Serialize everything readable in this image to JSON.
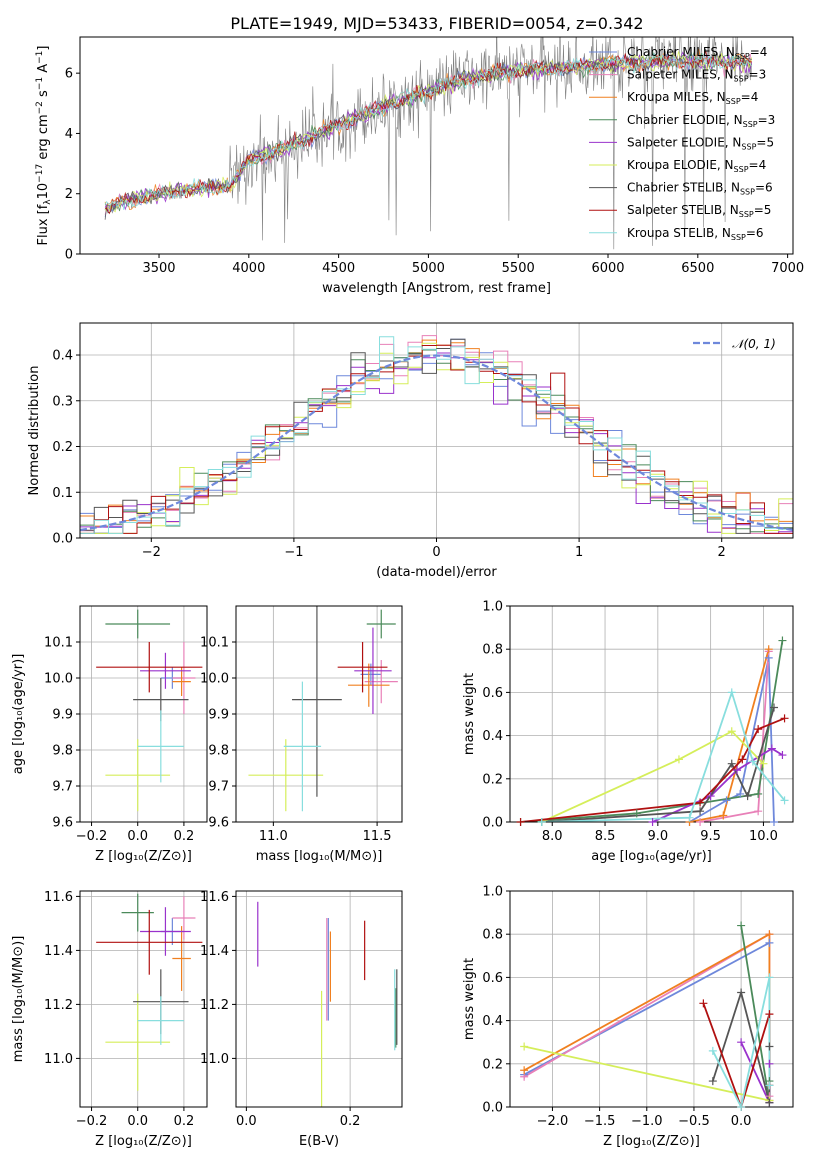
{
  "chart_data": [
    {
      "type": "line",
      "title": "PLATE=1949, MJD=53433, FIBERID=0054, z=0.342",
      "xlabel": "wavelength [Angstrom, rest frame]",
      "ylabel": "Flux [f$_\\lambda$10$^{-17}$ erg cm$^{-2}$ s$^{-1}$ A$^{-1}$]",
      "ylabel_parts": [
        "Flux [f",
        "λ",
        "10",
        "−17",
        " erg cm",
        "−2",
        " s",
        "−1",
        " A",
        "−1",
        "]"
      ],
      "xlim": [
        3060,
        7030
      ],
      "ylim": [
        0,
        7.2
      ],
      "xticks": [
        "3500",
        "4000",
        "4500",
        "5000",
        "5500",
        "6000",
        "6500",
        "7000"
      ],
      "yticks": [
        "0",
        "2",
        "4",
        "6"
      ],
      "grid": false,
      "legend_position": "top-right",
      "continuum_knots": {
        "x": [
          3200,
          3300,
          3500,
          3700,
          3900,
          4000,
          4200,
          4500,
          4800,
          5000,
          5200,
          5500,
          5800,
          6000,
          6300,
          6600,
          6800
        ],
        "y": [
          1.5,
          1.75,
          2.0,
          2.15,
          2.3,
          3.1,
          3.5,
          4.3,
          5.0,
          5.4,
          5.8,
          6.1,
          6.2,
          6.3,
          6.4,
          6.4,
          6.3
        ]
      },
      "series": [
        {
          "name": "Chabrier MILES, N",
          "sub": "SSP",
          "suffix": "=4",
          "color": "#6e88db"
        },
        {
          "name": "Salpeter MILES, N",
          "sub": "SSP",
          "suffix": "=3",
          "color": "#e880b8"
        },
        {
          "name": "Kroupa MILES, N",
          "sub": "SSP",
          "suffix": "=4",
          "color": "#f08020"
        },
        {
          "name": "Chabrier ELODIE, N",
          "sub": "SSP",
          "suffix": "=3",
          "color": "#4b8a5a"
        },
        {
          "name": "Salpeter ELODIE, N",
          "sub": "SSP",
          "suffix": "=5",
          "color": "#9932cc"
        },
        {
          "name": "Kroupa ELODIE, N",
          "sub": "SSP",
          "suffix": "=4",
          "color": "#d5ee5a"
        },
        {
          "name": "Chabrier STELIB, N",
          "sub": "SSP",
          "suffix": "=6",
          "color": "#555555"
        },
        {
          "name": "Salpeter STELIB, N",
          "sub": "SSP",
          "suffix": "=5",
          "color": "#b01010"
        },
        {
          "name": "Kroupa STELIB, N",
          "sub": "SSP",
          "suffix": "=6",
          "color": "#88dede"
        }
      ],
      "data_color": "#808080"
    },
    {
      "type": "bar",
      "xlabel": "(data-model)/error",
      "ylabel": "Normed distribution",
      "xlim": [
        -2.5,
        2.5
      ],
      "ylim": [
        0,
        0.47
      ],
      "xticks": [
        "−2",
        "−1",
        "0",
        "1",
        "2"
      ],
      "xtick_values": [
        -2,
        -1,
        0,
        1,
        2
      ],
      "yticks": [
        "0.0",
        "0.1",
        "0.2",
        "0.3",
        "0.4"
      ],
      "ytick_values": [
        0,
        0.1,
        0.2,
        0.3,
        0.4
      ],
      "grid": true,
      "bin_width": 0.1,
      "legend_position": "top-right",
      "reference_curve": {
        "name": "𝒩(0, 1)",
        "mu": 0,
        "sigma": 1,
        "color": "#6e88db"
      }
    },
    {
      "type": "scatter",
      "xlabel": "Z [log₁₀(Z/Z⊙)]",
      "ylabel": "age  [log₁₀(age/yr)]",
      "xlim": [
        -0.25,
        0.3
      ],
      "ylim": [
        9.6,
        10.2
      ],
      "xticks": [
        "−0.2",
        "0.0",
        "0.2"
      ],
      "xtick_values": [
        -0.2,
        0.0,
        0.2
      ],
      "yticks": [
        "9.6",
        "9.7",
        "9.8",
        "9.9",
        "10.0",
        "10.1"
      ],
      "ytick_values": [
        9.6,
        9.7,
        9.8,
        9.9,
        10.0,
        10.1
      ],
      "grid": true,
      "series": [
        {
          "name": "Chabrier MILES",
          "color": "#6e88db",
          "x": 0.15,
          "xerr": 0.05,
          "y": 10.0,
          "yerr": 0.03
        },
        {
          "name": "Salpeter MILES",
          "color": "#e880b8",
          "x": 0.2,
          "xerr": 0.05,
          "y": 10.0,
          "yerr": 0.1
        },
        {
          "name": "Kroupa MILES",
          "color": "#f08020",
          "x": 0.19,
          "xerr": 0.04,
          "y": 9.99,
          "yerr": 0.04
        },
        {
          "name": "Chabrier ELODIE",
          "color": "#4b8a5a",
          "x": 0.0,
          "xerr": 0.14,
          "y": 10.15,
          "yerr": 0.04
        },
        {
          "name": "Salpeter ELODIE",
          "color": "#9932cc",
          "x": 0.12,
          "xerr": 0.11,
          "y": 10.02,
          "yerr": 0.05
        },
        {
          "name": "Kroupa ELODIE",
          "color": "#d5ee5a",
          "x": 0.0,
          "xerr": 0.14,
          "y": 9.73,
          "yerr": 0.1
        },
        {
          "name": "Chabrier STELIB",
          "color": "#555555",
          "x": 0.1,
          "xerr": 0.12,
          "y": 9.94,
          "yerr": 0.06
        },
        {
          "name": "Salpeter STELIB",
          "color": "#b01010",
          "x": 0.05,
          "xerr": 0.23,
          "y": 10.03,
          "yerr": 0.07
        },
        {
          "name": "Kroupa STELIB",
          "color": "#88dede",
          "x": 0.1,
          "xerr": 0.1,
          "y": 9.81,
          "yerr": 0.1
        }
      ]
    },
    {
      "type": "scatter",
      "xlabel": "mass [log₁₀(M/M⊙)]",
      "ylabel": "",
      "xlim": [
        10.82,
        11.62
      ],
      "ylim": [
        9.6,
        10.2
      ],
      "xticks": [
        "11.0",
        "11.5"
      ],
      "xtick_values": [
        11.0,
        11.5
      ],
      "yticks": [
        "9.6",
        "9.7",
        "9.8",
        "9.9",
        "10.0",
        "10.1"
      ],
      "ytick_values": [
        9.6,
        9.7,
        9.8,
        9.9,
        10.0,
        10.1
      ],
      "grid": true,
      "series": [
        {
          "name": "Chabrier MILES",
          "color": "#6e88db",
          "x": 11.47,
          "xerr": 0.05,
          "y": 10.01,
          "yerr": 0.03
        },
        {
          "name": "Salpeter MILES",
          "color": "#e880b8",
          "x": 11.52,
          "xerr": 0.08,
          "y": 9.99,
          "yerr": 0.06
        },
        {
          "name": "Kroupa MILES",
          "color": "#f08020",
          "x": 11.46,
          "xerr": 0.1,
          "y": 9.98,
          "yerr": 0.06
        },
        {
          "name": "Chabrier ELODIE",
          "color": "#4b8a5a",
          "x": 11.52,
          "xerr": 0.07,
          "y": 10.15,
          "yerr": 0.04
        },
        {
          "name": "Salpeter ELODIE",
          "color": "#9932cc",
          "x": 11.48,
          "xerr": 0.09,
          "y": 10.02,
          "yerr": 0.12
        },
        {
          "name": "Kroupa ELODIE",
          "color": "#d5ee5a",
          "x": 11.06,
          "xerr": 0.18,
          "y": 9.73,
          "yerr": 0.1
        },
        {
          "name": "Chabrier STELIB",
          "color": "#555555",
          "x": 11.21,
          "xerr": 0.12,
          "y": 9.94,
          "yerr": 0.27
        },
        {
          "name": "Salpeter STELIB",
          "color": "#b01010",
          "x": 11.43,
          "xerr": 0.12,
          "y": 10.03,
          "yerr": 0.07
        },
        {
          "name": "Kroupa STELIB",
          "color": "#88dede",
          "x": 11.14,
          "xerr": 0.09,
          "y": 9.81,
          "yerr": 0.18
        }
      ]
    },
    {
      "type": "line",
      "xlabel": "age  [log₁₀(age/yr)]",
      "ylabel": "mass weight",
      "xlim": [
        7.6,
        10.28
      ],
      "ylim": [
        0,
        1.0
      ],
      "xticks": [
        "8.0",
        "8.5",
        "9.0",
        "9.5",
        "10.0"
      ],
      "xtick_values": [
        8.0,
        8.5,
        9.0,
        9.5,
        10.0
      ],
      "yticks": [
        "0.0",
        "0.2",
        "0.4",
        "0.6",
        "0.8",
        "1.0"
      ],
      "ytick_values": [
        0,
        0.2,
        0.4,
        0.6,
        0.8,
        1.0
      ],
      "grid": true,
      "series": [
        {
          "name": "Chabrier MILES",
          "color": "#6e88db",
          "x": [
            9.3,
            9.65,
            9.78,
            10.05,
            10.1
          ],
          "y": [
            0.0,
            0.1,
            0.13,
            0.76,
            0.0
          ]
        },
        {
          "name": "Salpeter MILES",
          "color": "#e880b8",
          "x": [
            9.4,
            9.95,
            10.05
          ],
          "y": [
            0.0,
            0.05,
            0.79
          ]
        },
        {
          "name": "Kroupa MILES",
          "color": "#f08020",
          "x": [
            9.3,
            9.62,
            10.05
          ],
          "y": [
            0.0,
            0.03,
            0.8
          ]
        },
        {
          "name": "Chabrier ELODIE",
          "color": "#4b8a5a",
          "x": [
            7.7,
            8.8,
            9.95,
            10.18
          ],
          "y": [
            0.0,
            0.04,
            0.13,
            0.84
          ]
        },
        {
          "name": "Salpeter ELODIE",
          "color": "#9932cc",
          "x": [
            8.95,
            9.5,
            9.75,
            10.08,
            10.18
          ],
          "y": [
            0.0,
            0.12,
            0.24,
            0.34,
            0.31
          ]
        },
        {
          "name": "Kroupa ELODIE",
          "color": "#d5ee5a",
          "x": [
            7.9,
            9.2,
            9.7,
            10.0
          ],
          "y": [
            0.0,
            0.29,
            0.42,
            0.27
          ]
        },
        {
          "name": "Chabrier STELIB",
          "color": "#555555",
          "x": [
            7.9,
            9.4,
            9.7,
            9.85,
            10.1
          ],
          "y": [
            0.0,
            0.05,
            0.27,
            0.12,
            0.53
          ]
        },
        {
          "name": "Salpeter STELIB",
          "color": "#b01010",
          "x": [
            7.7,
            9.4,
            9.8,
            9.95,
            10.2
          ],
          "y": [
            0.0,
            0.09,
            0.29,
            0.43,
            0.48
          ]
        },
        {
          "name": "Kroupa STELIB",
          "color": "#88dede",
          "x": [
            7.9,
            9.3,
            9.7,
            9.9,
            10.2
          ],
          "y": [
            0.0,
            0.02,
            0.6,
            0.28,
            0.1
          ]
        }
      ]
    },
    {
      "type": "scatter",
      "xlabel": "Z [log₁₀(Z/Z⊙)]",
      "ylabel": "mass [log₁₀(M/M⊙)]",
      "xlim": [
        -0.25,
        0.3
      ],
      "ylim": [
        10.82,
        11.62
      ],
      "xticks": [
        "−0.2",
        "0.0",
        "0.2"
      ],
      "xtick_values": [
        -0.2,
        0.0,
        0.2
      ],
      "yticks": [
        "11.0",
        "11.2",
        "11.4",
        "11.6"
      ],
      "ytick_values": [
        11.0,
        11.2,
        11.4,
        11.6
      ],
      "grid": true,
      "series": [
        {
          "name": "Chabrier MILES",
          "color": "#6e88db",
          "x": 0.15,
          "xerr": 0.05,
          "y": 11.47,
          "yerr": 0.05
        },
        {
          "name": "Salpeter MILES",
          "color": "#e880b8",
          "x": 0.2,
          "xerr": 0.05,
          "y": 11.52,
          "yerr": 0.08
        },
        {
          "name": "Kroupa MILES",
          "color": "#f08020",
          "x": 0.19,
          "xerr": 0.04,
          "y": 11.37,
          "yerr": 0.12
        },
        {
          "name": "Chabrier ELODIE",
          "color": "#4b8a5a",
          "x": 0.0,
          "xerr": 0.07,
          "y": 11.54,
          "yerr": 0.07
        },
        {
          "name": "Salpeter ELODIE",
          "color": "#9932cc",
          "x": 0.12,
          "xerr": 0.11,
          "y": 11.47,
          "yerr": 0.09
        },
        {
          "name": "Kroupa ELODIE",
          "color": "#d5ee5a",
          "x": 0.0,
          "xerr": 0.14,
          "y": 11.06,
          "yerr": 0.18
        },
        {
          "name": "Chabrier STELIB",
          "color": "#555555",
          "x": 0.1,
          "xerr": 0.12,
          "y": 11.21,
          "yerr": 0.12
        },
        {
          "name": "Salpeter STELIB",
          "color": "#b01010",
          "x": 0.05,
          "xerr": 0.23,
          "y": 11.43,
          "yerr": 0.12
        },
        {
          "name": "Kroupa STELIB",
          "color": "#88dede",
          "x": 0.1,
          "xerr": 0.1,
          "y": 11.14,
          "yerr": 0.09
        }
      ]
    },
    {
      "type": "scatter",
      "xlabel": "E(B-V)",
      "ylabel": "",
      "xlim": [
        -0.02,
        0.3
      ],
      "ylim": [
        10.82,
        11.62
      ],
      "xticks": [
        "0.0",
        "0.2"
      ],
      "xtick_values": [
        0.0,
        0.2
      ],
      "yticks": [
        "11.0",
        "11.2",
        "11.4",
        "11.6"
      ],
      "ytick_values": [
        11.0,
        11.2,
        11.4,
        11.6
      ],
      "grid": true,
      "series": [
        {
          "name": "Chabrier MILES",
          "color": "#6e88db",
          "x": 0.158,
          "y": 11.33,
          "yerr": 0.19
        },
        {
          "name": "Salpeter MILES",
          "color": "#e880b8",
          "x": 0.155,
          "y": 11.33,
          "yerr": 0.19
        },
        {
          "name": "Kroupa MILES",
          "color": "#f08020",
          "x": 0.162,
          "y": 11.34,
          "yerr": 0.13
        },
        {
          "name": "Chabrier ELODIE",
          "color": "#4b8a5a",
          "x": 0.288,
          "y": 11.15,
          "yerr": 0.11
        },
        {
          "name": "Salpeter ELODIE",
          "color": "#9932cc",
          "x": 0.022,
          "y": 11.46,
          "yerr": 0.12
        },
        {
          "name": "Kroupa ELODIE",
          "color": "#d5ee5a",
          "x": 0.145,
          "y": 10.99,
          "yerr": 0.26
        },
        {
          "name": "Chabrier STELIB",
          "color": "#555555",
          "x": 0.29,
          "y": 11.19,
          "yerr": 0.14
        },
        {
          "name": "Salpeter STELIB",
          "color": "#b01010",
          "x": 0.228,
          "y": 11.4,
          "yerr": 0.11
        },
        {
          "name": "Kroupa STELIB",
          "color": "#88dede",
          "x": 0.286,
          "y": 11.18,
          "yerr": 0.15
        }
      ]
    },
    {
      "type": "line",
      "xlabel": "Z [log₁₀(Z/Z⊙)]",
      "ylabel": "mass weight",
      "xlim": [
        -2.45,
        0.55
      ],
      "ylim": [
        0,
        1.0
      ],
      "xticks": [
        "−2.0",
        "−1.5",
        "−1.0",
        "−0.5",
        "0.0"
      ],
      "xtick_values": [
        -2.0,
        -1.5,
        -1.0,
        -0.5,
        0.0
      ],
      "yticks": [
        "0.0",
        "0.2",
        "0.4",
        "0.6",
        "0.8",
        "1.0"
      ],
      "ytick_values": [
        0,
        0.2,
        0.4,
        0.6,
        0.8,
        1.0
      ],
      "grid": true,
      "series": [
        {
          "name": "Chabrier MILES",
          "color": "#6e88db",
          "x": [
            -2.3,
            0.3
          ],
          "y": [
            0.15,
            0.76
          ]
        },
        {
          "name": "Salpeter MILES",
          "color": "#e880b8",
          "x": [
            -2.3,
            0.3,
            0.3
          ],
          "y": [
            0.14,
            0.8,
            0.05
          ]
        },
        {
          "name": "Kroupa MILES",
          "color": "#f08020",
          "x": [
            -2.3,
            0.3,
            0.3
          ],
          "y": [
            0.17,
            0.8,
            0.03
          ]
        },
        {
          "name": "Chabrier ELODIE",
          "color": "#4b8a5a",
          "x": [
            0.0,
            0.3,
            0.3
          ],
          "y": [
            0.84,
            0.02,
            0.12
          ]
        },
        {
          "name": "Salpeter ELODIE",
          "color": "#9932cc",
          "x": [
            0.0,
            0.3,
            0.3
          ],
          "y": [
            0.3,
            0.02,
            0.2
          ]
        },
        {
          "name": "Kroupa ELODIE",
          "color": "#d5ee5a",
          "x": [
            -2.3,
            0.3
          ],
          "y": [
            0.28,
            0.03
          ]
        },
        {
          "name": "Chabrier STELIB",
          "color": "#555555",
          "x": [
            -0.3,
            0.0,
            0.3,
            0.3
          ],
          "y": [
            0.12,
            0.53,
            0.02,
            0.28
          ]
        },
        {
          "name": "Salpeter STELIB",
          "color": "#b01010",
          "x": [
            -0.4,
            0.0,
            0.3,
            0.3
          ],
          "y": [
            0.48,
            0.0,
            0.43,
            0.1
          ]
        },
        {
          "name": "Kroupa STELIB",
          "color": "#88dede",
          "x": [
            -0.3,
            0.0,
            0.3,
            0.3
          ],
          "y": [
            0.26,
            0.0,
            0.6,
            0.1
          ]
        }
      ]
    }
  ]
}
